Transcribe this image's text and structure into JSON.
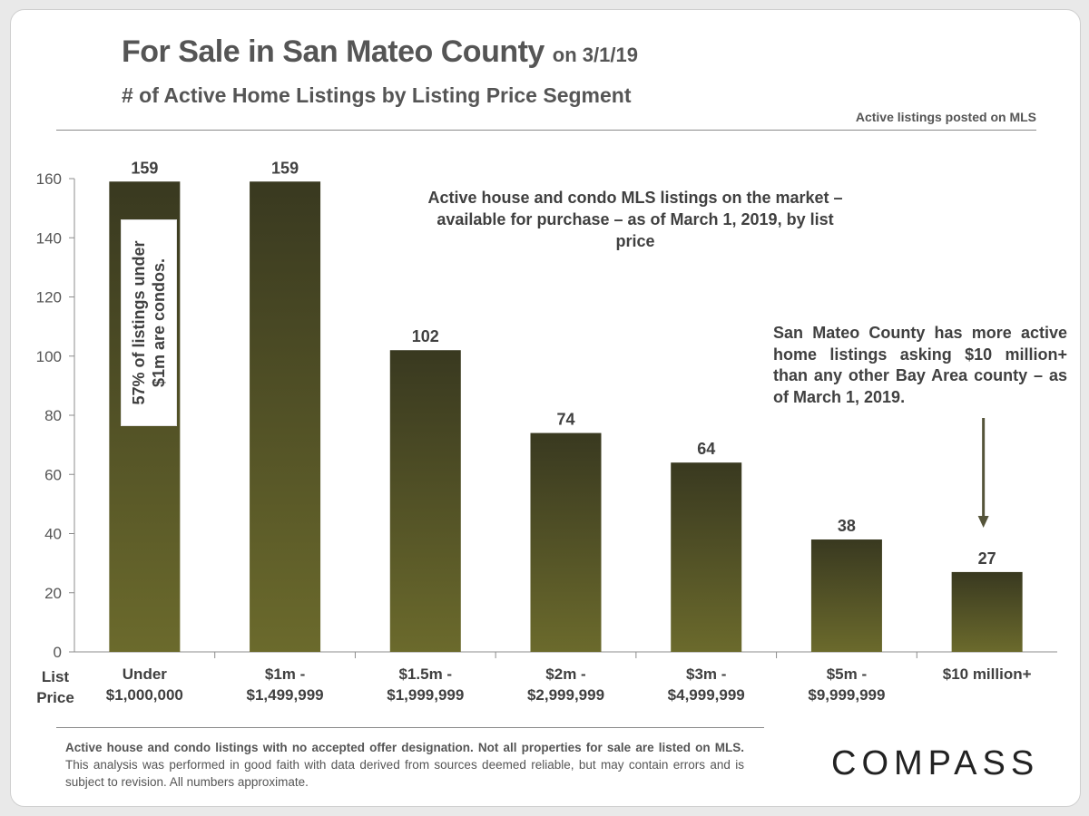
{
  "header": {
    "title": "For Sale in San Mateo County",
    "title_date": "on 3/1/19",
    "subtitle": "# of Active Home Listings by Listing Price Segment",
    "source_note": "Active listings  posted on MLS"
  },
  "chart_data": {
    "type": "bar",
    "categories": [
      [
        "Under",
        "$1,000,000"
      ],
      [
        "$1m -",
        "$1,499,999"
      ],
      [
        "$1.5m -",
        "$1,999,999"
      ],
      [
        "$2m -",
        "$2,999,999"
      ],
      [
        "$3m -",
        "$4,999,999"
      ],
      [
        "$5m -",
        "$9,999,999"
      ],
      [
        "$10 million+"
      ]
    ],
    "values": [
      159,
      159,
      102,
      74,
      64,
      38,
      27
    ],
    "ylim": [
      0,
      160
    ],
    "yticks": [
      0,
      20,
      40,
      60,
      80,
      100,
      120,
      140,
      160
    ],
    "xlabel": "List Price",
    "data_labels": true,
    "grid": false,
    "colors": {
      "bar_top": "#393920",
      "bar_bottom": "#6b6a2c",
      "axis": "#8c8c8c",
      "text": "#404040"
    }
  },
  "annotations": {
    "center": "Active house and condo MLS listings on the market – available for purchase – as of March 1, 2019, by list price",
    "right": "San Mateo County has more active home listings asking $10 million+ than any other Bay Area county – as of March 1, 2019.",
    "condo_note": "57% of listings under $1m are condos.",
    "arrow_color": "#55543a"
  },
  "footer": {
    "note_bold": "Active house and condo listings with no accepted offer designation. Not all properties for sale are listed on MLS.",
    "note_regular": " This analysis was performed in good faith with data derived from sources deemed reliable, but may contain errors and is subject to revision. All numbers approximate.",
    "logo": "COMPASS"
  }
}
